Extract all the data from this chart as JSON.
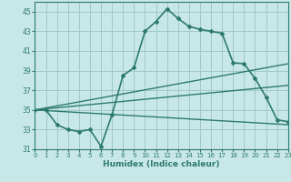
{
  "xlabel": "Humidex (Indice chaleur)",
  "ylabel": "",
  "background_color": "#c8e8e8",
  "grid_color": "#a0c8c8",
  "line_color": "#2d7a6e",
  "xlim": [
    0,
    23
  ],
  "ylim": [
    31,
    46
  ],
  "yticks": [
    31,
    33,
    35,
    37,
    39,
    41,
    43,
    45
  ],
  "xticks": [
    0,
    1,
    2,
    3,
    4,
    5,
    6,
    7,
    8,
    9,
    10,
    11,
    12,
    13,
    14,
    15,
    16,
    17,
    18,
    19,
    20,
    21,
    22,
    23
  ],
  "series": [
    {
      "x": [
        0,
        1,
        2,
        3,
        4,
        5,
        6,
        7,
        8,
        9,
        10,
        11,
        12,
        13,
        14,
        15,
        16,
        17,
        18,
        19,
        20,
        21,
        22,
        23
      ],
      "y": [
        35,
        35,
        33.5,
        33,
        32.8,
        33,
        31.3,
        34.5,
        38.5,
        39.3,
        43.0,
        44.0,
        45.3,
        44.3,
        43.5,
        43.2,
        43.0,
        42.8,
        39.8,
        39.7,
        38.2,
        36.3,
        34.0,
        33.8
      ],
      "has_markers": true,
      "linewidth": 1.2
    },
    {
      "x": [
        0,
        23
      ],
      "y": [
        35,
        39.7
      ],
      "has_markers": false,
      "linewidth": 1.0
    },
    {
      "x": [
        0,
        23
      ],
      "y": [
        35,
        37.5
      ],
      "has_markers": false,
      "linewidth": 1.0
    },
    {
      "x": [
        0,
        23
      ],
      "y": [
        35,
        33.5
      ],
      "has_markers": false,
      "linewidth": 1.0
    }
  ]
}
